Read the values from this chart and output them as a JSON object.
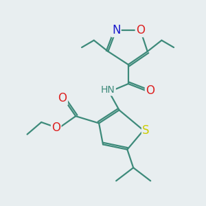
{
  "background_color": "#e8eef0",
  "atom_colors": {
    "C": "#3d8a7a",
    "N": "#1a1acc",
    "O": "#dd2222",
    "S": "#cccc00",
    "H": "#3d8a7a"
  },
  "bond_color": "#3d8a7a",
  "bond_width": 1.6,
  "figsize": [
    3.0,
    3.0
  ],
  "dpi": 100
}
